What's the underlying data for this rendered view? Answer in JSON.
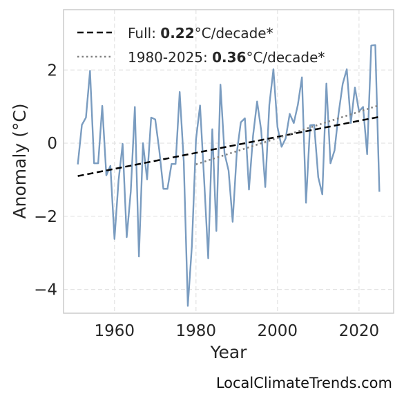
{
  "chart_data": {
    "type": "line",
    "title": "",
    "xlabel": "Year",
    "ylabel": "Anomaly (°C)",
    "xlim": [
      1947.5,
      2028.5
    ],
    "ylim": [
      -4.65,
      3.65
    ],
    "xticks": [
      1960,
      1980,
      2000,
      2020
    ],
    "yticks": [
      -4,
      -2,
      0,
      2
    ],
    "ytick_labels": [
      "−4",
      "−2",
      "0",
      "2"
    ],
    "grid": true,
    "legend_position": "top-left",
    "series": [
      {
        "role": "anomaly",
        "color": "#7a9cc0",
        "x": [
          1951,
          1952,
          1953,
          1954,
          1955,
          1956,
          1957,
          1958,
          1959,
          1960,
          1961,
          1962,
          1963,
          1964,
          1965,
          1966,
          1967,
          1968,
          1969,
          1970,
          1971,
          1972,
          1973,
          1974,
          1975,
          1976,
          1977,
          1978,
          1979,
          1980,
          1981,
          1982,
          1983,
          1984,
          1985,
          1986,
          1987,
          1988,
          1989,
          1990,
          1991,
          1992,
          1993,
          1994,
          1995,
          1996,
          1997,
          1998,
          1999,
          2000,
          2001,
          2002,
          2003,
          2004,
          2005,
          2006,
          2007,
          2008,
          2009,
          2010,
          2011,
          2012,
          2013,
          2014,
          2015,
          2016,
          2017,
          2018,
          2019,
          2020,
          2021,
          2022,
          2023,
          2024,
          2025
        ],
        "y": [
          -0.58,
          0.5,
          0.7,
          1.98,
          -0.55,
          -0.55,
          1.02,
          -0.88,
          -0.62,
          -2.62,
          -1.02,
          -0.02,
          -2.57,
          -1.32,
          0.99,
          -3.1,
          0.0,
          -0.99,
          0.7,
          0.65,
          -0.2,
          -1.25,
          -1.25,
          -0.57,
          -0.57,
          1.4,
          -0.5,
          -4.45,
          -2.8,
          0.1,
          1.03,
          -1.0,
          -3.15,
          0.38,
          -2.4,
          1.6,
          -0.28,
          -0.75,
          -2.15,
          -0.28,
          0.57,
          0.68,
          -1.27,
          0.2,
          1.14,
          0.35,
          -1.2,
          1.05,
          2.02,
          0.44,
          -0.1,
          0.13,
          0.8,
          0.55,
          1.05,
          1.8,
          -1.63,
          0.49,
          0.5,
          -0.93,
          -1.4,
          1.63,
          -0.55,
          -0.2,
          0.82,
          1.62,
          2.02,
          0.55,
          1.52,
          0.87,
          0.99,
          -0.3,
          2.67,
          2.68,
          -1.33
        ]
      },
      {
        "role": "full-trend",
        "color": "#000000",
        "dash": "dashed",
        "x": [
          1951,
          2025
        ],
        "y": [
          -0.9,
          0.72
        ]
      },
      {
        "role": "recent-trend",
        "color": "#808080",
        "dash": "dotted",
        "x": [
          1980,
          2025
        ],
        "y": [
          -0.58,
          1.04
        ]
      }
    ],
    "legend": [
      {
        "prefix": "Full: ",
        "value": "0.22",
        "suffix": "°C/decade*",
        "style": "dashed",
        "color": "#000000"
      },
      {
        "prefix": "1980-2025: ",
        "value": "0.36",
        "suffix": "°C/decade*",
        "style": "dotted",
        "color": "#808080"
      }
    ]
  },
  "credit": "LocalClimateTrends.com"
}
